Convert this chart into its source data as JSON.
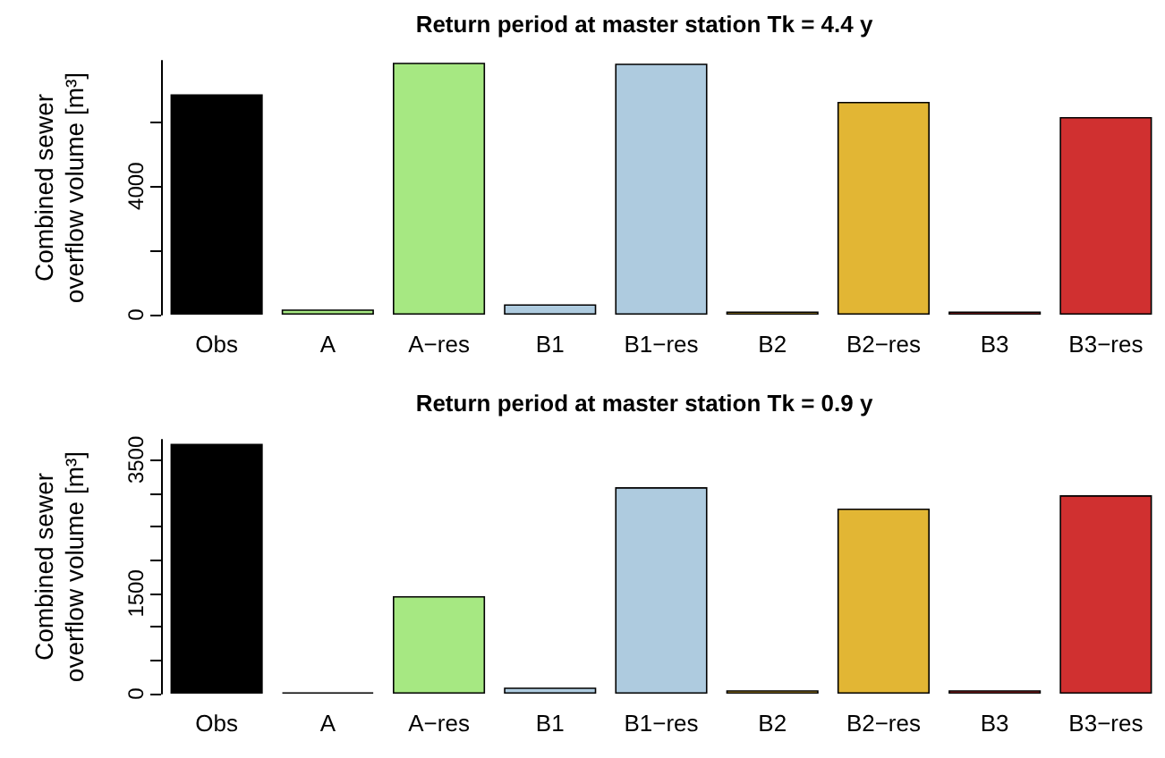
{
  "chart_data": [
    {
      "type": "bar",
      "title": "Return period at master station Tk = 4.4 y",
      "ylabel": "Combined sewer\noverflow volume [m³]",
      "categories": [
        "Obs",
        "A",
        "A−res",
        "B1",
        "B1−res",
        "B2",
        "B2−res",
        "B3",
        "B3−res"
      ],
      "values": [
        6860,
        160,
        7840,
        320,
        7810,
        100,
        6620,
        100,
        6150
      ],
      "colors": [
        "#000000",
        "#a6e882",
        "#a6e882",
        "#aecbdf",
        "#aecbdf",
        "#e2b634",
        "#e2b634",
        "#d03030",
        "#d03030"
      ],
      "ylim": [
        0,
        7900
      ],
      "yticks": [
        0,
        {
          "value": 2000,
          "label": null
        },
        4000,
        {
          "value": 6000,
          "label": null
        }
      ],
      "grid": false
    },
    {
      "type": "bar",
      "title": "Return period at master station Tk = 0.9 y",
      "ylabel": "Combined sewer\noverflow volume [m³]",
      "categories": [
        "Obs",
        "A",
        "A−res",
        "B1",
        "B1−res",
        "B2",
        "B2−res",
        "B3",
        "B3−res"
      ],
      "values": [
        3740,
        20,
        1460,
        90,
        3090,
        50,
        2770,
        50,
        2970
      ],
      "colors": [
        "#000000",
        "#000000",
        "#a6e882",
        "#aecbdf",
        "#aecbdf",
        "#e2b634",
        "#e2b634",
        "#d03030",
        "#d03030"
      ],
      "ylim": [
        0,
        3800
      ],
      "yticks": [
        0,
        {
          "value": 500,
          "label": null
        },
        {
          "value": 1000,
          "label": null
        },
        1500,
        {
          "value": 2000,
          "label": null
        },
        {
          "value": 2500,
          "label": null
        },
        {
          "value": 3000,
          "label": null
        },
        3500
      ],
      "grid": false
    }
  ]
}
